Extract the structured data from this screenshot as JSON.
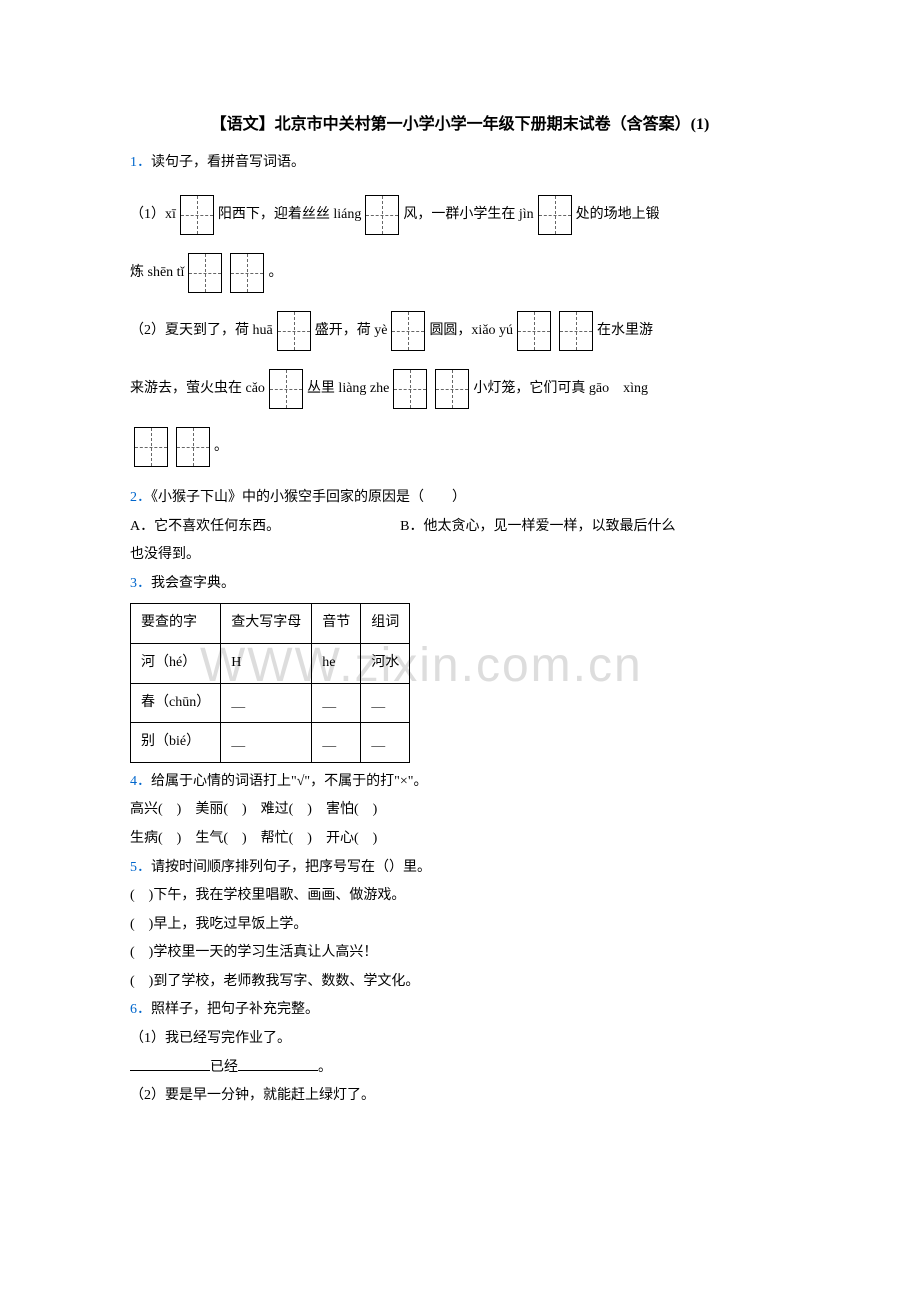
{
  "title": "【语文】北京市中关村第一小学小学一年级下册期末试卷（含答案）(1)",
  "watermark": "WWW.zixin.com.cn",
  "colors": {
    "qnum": "#0066cc",
    "text": "#000000",
    "watermark": "#dddddd"
  },
  "q1": {
    "num": "1．",
    "stem": "读句子，看拼音写词语。",
    "line1a": "（1）xī",
    "line1b": "阳西下，迎着丝丝 liáng",
    "line1c": "风，一群小学生在 jìn",
    "line1d": "处的场地上锻",
    "line2a": "炼 shēn tǐ",
    "line2b": "。",
    "line3a": "（2）夏天到了，荷 huā",
    "line3b": "盛开，荷 yè",
    "line3c": "圆圆，xiǎo yú",
    "line3d": "在水里游",
    "line4a": "来游去，萤火虫在 cǎo",
    "line4b": "丛里 liàng zhe",
    "line4c": "小灯笼，它们可真 gāo　xìng",
    "line5a": "。"
  },
  "q2": {
    "num": "2．",
    "stem": "《小猴子下山》中的小猴空手回家的原因是（　　）",
    "optA": "A．它不喜欢任何东西。",
    "optB": "B．他太贪心，见一样爱一样，以致最后什么",
    "optB2": "也没得到。"
  },
  "q3": {
    "num": "3．",
    "stem": "我会查字典。",
    "table": {
      "headers": [
        "要查的字",
        "查大写字母",
        "音节",
        "组词"
      ],
      "rows": [
        [
          "河（hé）",
          "H",
          "he",
          "河水"
        ],
        [
          "春（chūn）",
          "＿",
          "＿",
          "＿"
        ],
        [
          "别（bié）",
          "＿",
          "＿",
          "＿"
        ]
      ]
    }
  },
  "q4": {
    "num": "4．",
    "stem": "给属于心情的词语打上\"√\"，不属于的打\"×\"。",
    "line1": "高兴(　)　美丽(　)　难过(　)　害怕(　)",
    "line2": "生病(　)　生气(　)　帮忙(　)　开心(　)"
  },
  "q5": {
    "num": "5．",
    "stem": "请按时间顺序排列句子，把序号写在（）里。",
    "l1": "(　)下午，我在学校里唱歌、画画、做游戏。",
    "l2": "(　)早上，我吃过早饭上学。",
    "l3": "(　)学校里一天的学习生活真让人高兴！",
    "l4": "(　)到了学校，老师教我写字、数数、学文化。"
  },
  "q6": {
    "num": "6．",
    "stem": "照样子，把句子补充完整。",
    "l1": "（1）我已经写完作业了。",
    "l2a": "已经",
    "l2b": "。",
    "l3": "（2）要是早一分钟，就能赶上绿灯了。"
  }
}
